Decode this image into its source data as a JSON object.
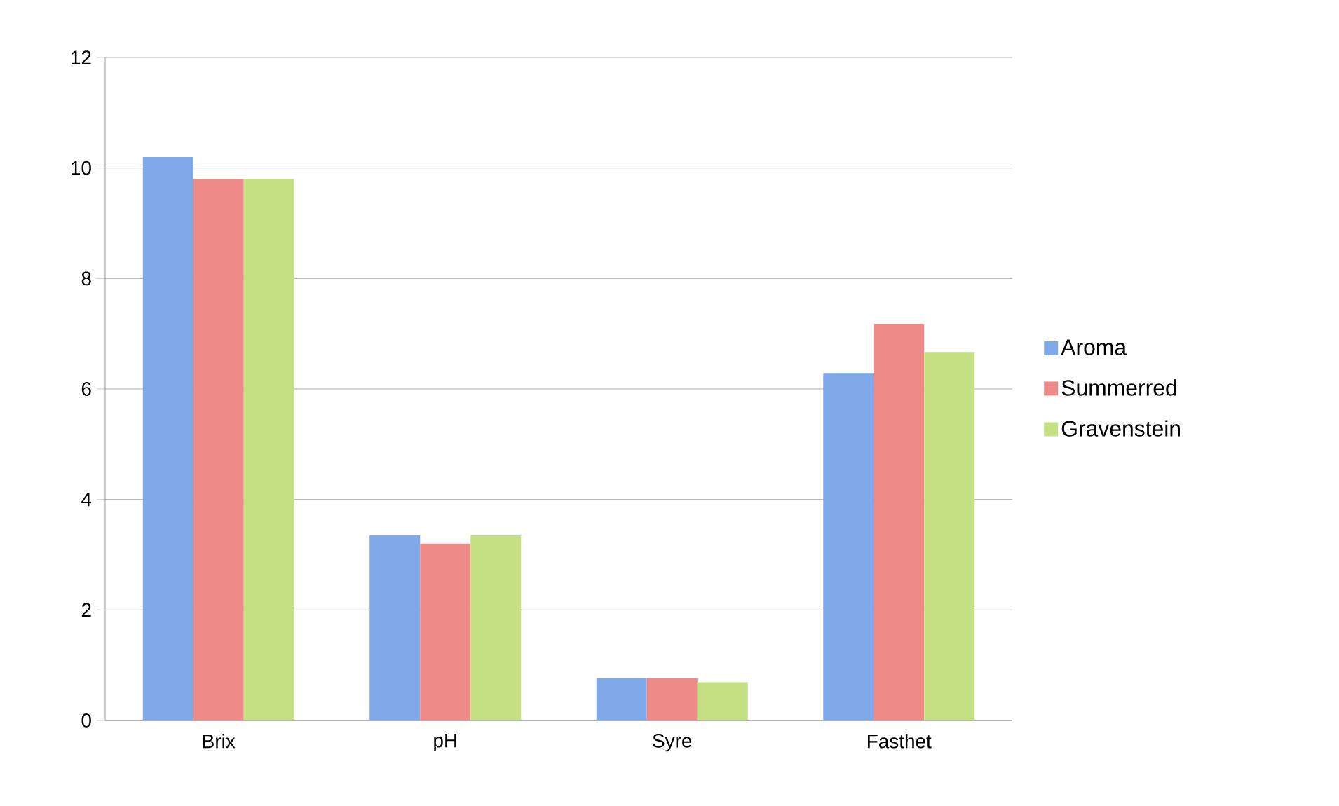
{
  "chart_data": {
    "type": "bar",
    "categories": [
      "Brix",
      "pH",
      "Syre",
      "Fasthet"
    ],
    "series": [
      {
        "name": "Aroma",
        "color": "#7fa9e8",
        "values": [
          10.2,
          3.35,
          0.76,
          6.29
        ]
      },
      {
        "name": "Summerred",
        "color": "#ee8a87",
        "values": [
          9.8,
          3.2,
          0.76,
          7.18
        ]
      },
      {
        "name": "Gravenstein",
        "color": "#c5e083",
        "values": [
          9.8,
          3.35,
          0.69,
          6.67
        ]
      }
    ],
    "ylim": [
      0,
      12
    ],
    "yticks": [
      0,
      2,
      4,
      6,
      8,
      10,
      12
    ],
    "grid": "y",
    "legend": "right"
  }
}
